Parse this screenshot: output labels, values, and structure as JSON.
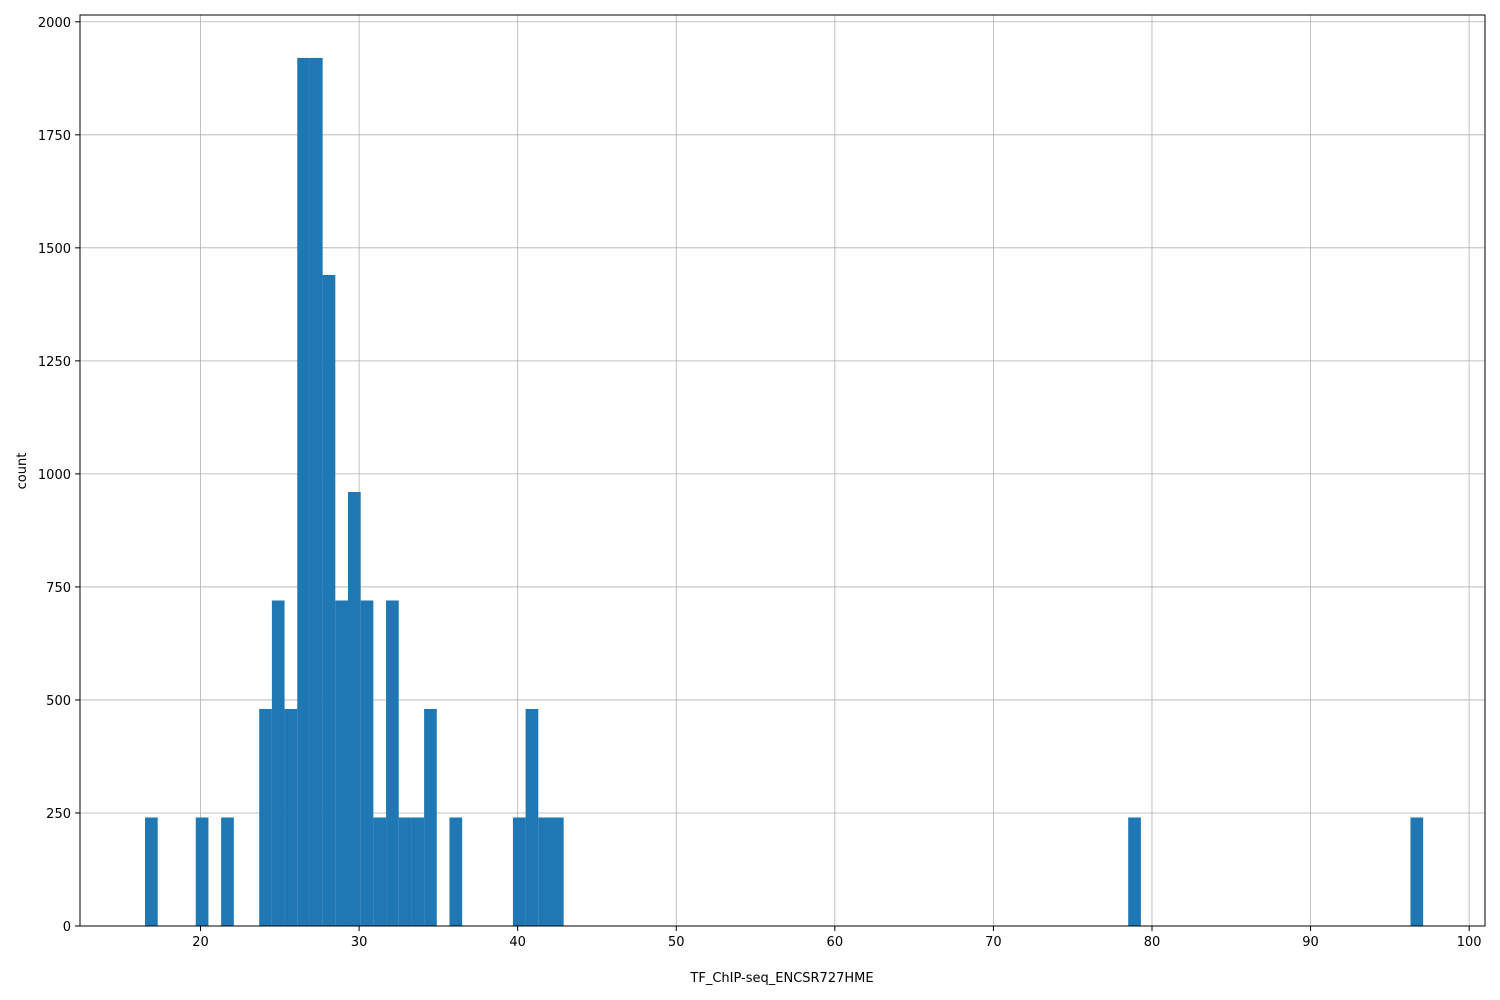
{
  "chart_data": {
    "type": "bar",
    "subtype": "histogram",
    "title": "",
    "xlabel": "TF_ChIP-seq_ENCSR727HME",
    "ylabel": "count",
    "xlim": [
      12.4,
      101.0
    ],
    "ylim": [
      0,
      2015
    ],
    "grid": true,
    "colors": {
      "bar": "#1f77b4",
      "grid": "#b0b0b0",
      "axis": "#000000"
    },
    "bin_width": 0.8,
    "x_ticks": [
      20,
      30,
      40,
      50,
      60,
      70,
      80,
      90,
      100
    ],
    "x_tick_labels": [
      "20",
      "30",
      "40",
      "50",
      "60",
      "70",
      "80",
      "90",
      "100"
    ],
    "y_ticks": [
      0,
      250,
      500,
      750,
      1000,
      1250,
      1500,
      1750,
      2000
    ],
    "y_tick_labels": [
      "0",
      "250",
      "500",
      "750",
      "1000",
      "1250",
      "1500",
      "1750",
      "2000"
    ],
    "bins": [
      {
        "x": 16.5,
        "value": 240
      },
      {
        "x": 19.7,
        "value": 240
      },
      {
        "x": 21.3,
        "value": 240
      },
      {
        "x": 23.7,
        "value": 480
      },
      {
        "x": 24.5,
        "value": 720
      },
      {
        "x": 25.3,
        "value": 480
      },
      {
        "x": 26.1,
        "value": 1920
      },
      {
        "x": 26.9,
        "value": 1920
      },
      {
        "x": 27.7,
        "value": 1440
      },
      {
        "x": 28.5,
        "value": 720
      },
      {
        "x": 29.3,
        "value": 960
      },
      {
        "x": 30.1,
        "value": 720
      },
      {
        "x": 30.9,
        "value": 240
      },
      {
        "x": 31.7,
        "value": 720
      },
      {
        "x": 32.5,
        "value": 240
      },
      {
        "x": 33.3,
        "value": 240
      },
      {
        "x": 34.1,
        "value": 480
      },
      {
        "x": 35.7,
        "value": 240
      },
      {
        "x": 39.7,
        "value": 240
      },
      {
        "x": 40.5,
        "value": 480
      },
      {
        "x": 41.3,
        "value": 240
      },
      {
        "x": 42.1,
        "value": 240
      },
      {
        "x": 78.5,
        "value": 240
      },
      {
        "x": 96.3,
        "value": 240
      }
    ]
  }
}
